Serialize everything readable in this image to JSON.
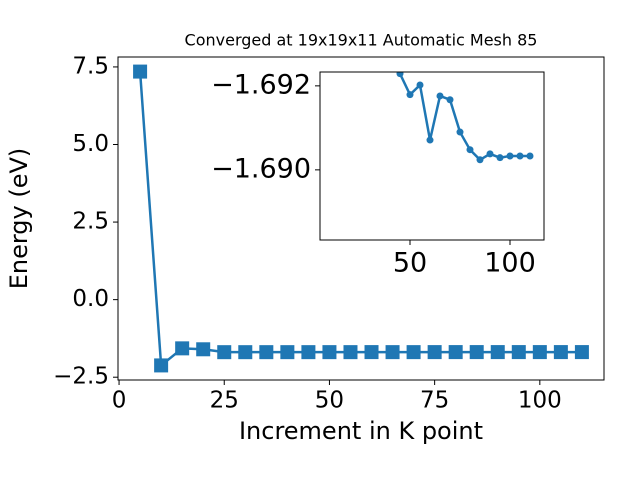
{
  "chart_data": [
    {
      "type": "line",
      "title": "Converged at 19x19x11 Automatic Mesh 85",
      "xlabel": "Increment in K point",
      "ylabel": "Energy (eV)",
      "x": [
        5,
        10,
        15,
        20,
        25,
        30,
        35,
        40,
        45,
        50,
        55,
        60,
        65,
        70,
        75,
        80,
        85,
        90,
        95,
        100,
        105,
        110
      ],
      "series": [
        {
          "color": "#1f77b4",
          "marker": "square",
          "values": [
            7.35,
            -2.12,
            -1.57,
            -1.6,
            -1.693,
            -1.693,
            -1.6925,
            -1.6924,
            -1.69229,
            -1.69179,
            -1.69202,
            -1.69071,
            -1.69176,
            -1.69167,
            -1.6909,
            -1.69048,
            -1.69024,
            -1.69038,
            -1.69029,
            -1.69033,
            -1.69033,
            -1.69033
          ]
        }
      ],
      "xlim": [
        -0.25,
        115.25
      ],
      "ylim": [
        -2.59,
        7.82
      ],
      "xticks": [
        0,
        25,
        50,
        75,
        100
      ],
      "yticks": [
        {
          "value": -2.5,
          "label": "−2.5"
        },
        {
          "value": 0,
          "label": "0.0"
        },
        2.5,
        {
          "value": 5,
          "label": "5.0"
        },
        7.5
      ]
    },
    {
      "type": "line",
      "x": [
        45,
        50,
        55,
        60,
        65,
        70,
        75,
        80,
        85,
        90,
        95,
        100,
        105,
        110
      ],
      "series": [
        {
          "color": "#1f77b4",
          "marker": "circle",
          "values": [
            -1.69229,
            -1.69179,
            -1.69202,
            -1.69071,
            -1.69176,
            -1.69167,
            -1.6909,
            -1.69048,
            -1.69024,
            -1.69038,
            -1.69029,
            -1.69033,
            -1.69033,
            -1.69033
          ]
        }
      ],
      "xlim": [
        5,
        117
      ],
      "ylim": [
        -1.68833,
        -1.69233
      ],
      "xticks": [
        50,
        100
      ],
      "yticks": [
        {
          "value": -1.692,
          "label": "−1.692"
        },
        {
          "value": -1.69,
          "label": "−1.690"
        }
      ]
    }
  ]
}
